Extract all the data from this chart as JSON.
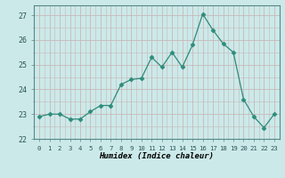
{
  "x": [
    0,
    1,
    2,
    3,
    4,
    5,
    6,
    7,
    8,
    9,
    10,
    11,
    12,
    13,
    14,
    15,
    16,
    17,
    18,
    19,
    20,
    21,
    22,
    23
  ],
  "y": [
    22.9,
    23.0,
    23.0,
    22.8,
    22.8,
    23.1,
    23.35,
    23.35,
    24.2,
    24.4,
    24.45,
    25.3,
    24.9,
    25.5,
    24.9,
    25.8,
    27.05,
    26.4,
    25.85,
    25.5,
    23.6,
    22.9,
    22.45,
    23.0
  ],
  "line_color": "#2e8b7a",
  "marker": "D",
  "marker_size": 2.5,
  "bg_color": "#cce9e9",
  "grid_color_major": "#c8b8b8",
  "grid_color_minor": "#c8b8b8",
  "xlabel": "Humidex (Indice chaleur)",
  "ylim": [
    22,
    27.4
  ],
  "xlim": [
    -0.5,
    23.5
  ],
  "yticks": [
    22,
    23,
    24,
    25,
    26,
    27
  ],
  "xtick_labels": [
    "0",
    "1",
    "2",
    "3",
    "4",
    "5",
    "6",
    "7",
    "8",
    "9",
    "10",
    "11",
    "12",
    "13",
    "14",
    "15",
    "16",
    "17",
    "18",
    "19",
    "20",
    "21",
    "22",
    "23"
  ]
}
